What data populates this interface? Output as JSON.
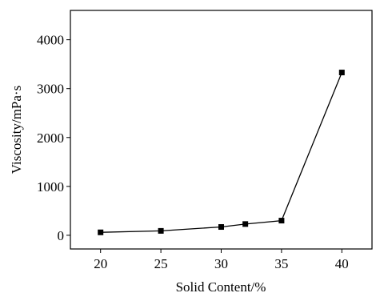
{
  "chart_data": {
    "type": "line",
    "xlabel": "Solid Content/%",
    "ylabel": "Viscosity/mPa·s",
    "xlim": [
      17.5,
      42.5
    ],
    "ylim": [
      -280,
      4600
    ],
    "xticks": [
      20,
      25,
      30,
      35,
      40
    ],
    "yticks": [
      0,
      1000,
      2000,
      3000,
      4000
    ],
    "grid": false,
    "series": [
      {
        "x": [
          20,
          25,
          30,
          32,
          35,
          40
        ],
        "y": [
          60,
          90,
          170,
          230,
          300,
          3330
        ],
        "marker": "square",
        "color": "#000000"
      }
    ]
  }
}
